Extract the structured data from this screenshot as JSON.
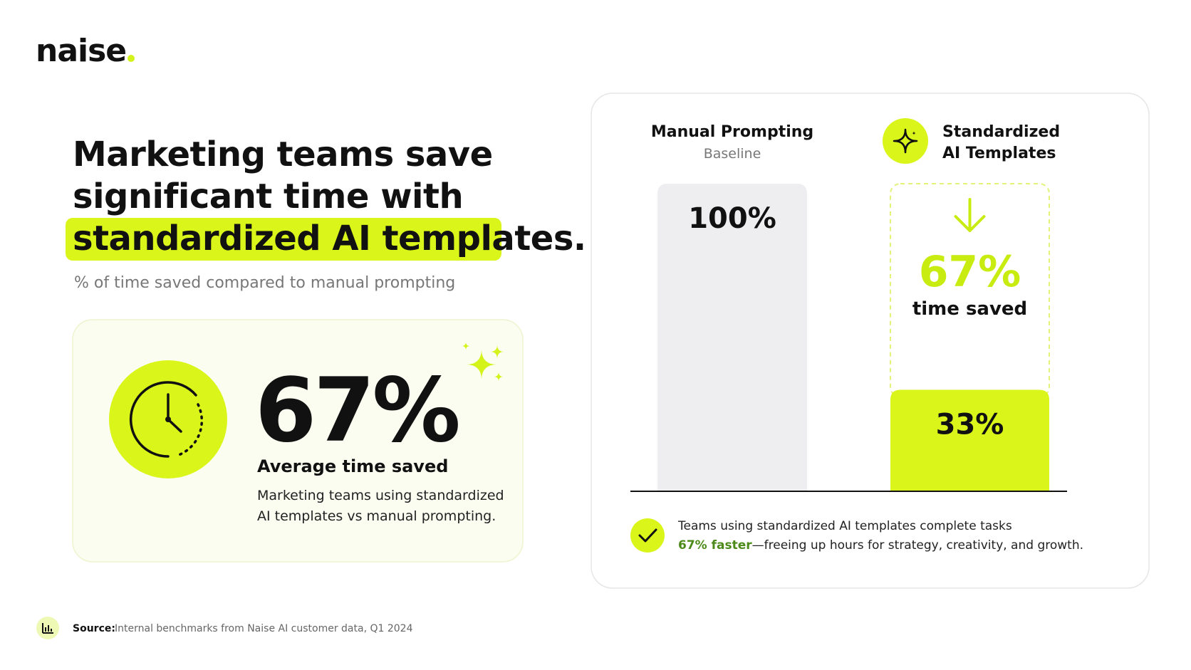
{
  "logo": "naise",
  "headline": {
    "lines": [
      "Marketing teams save",
      "significant time with"
    ],
    "highlight": "standardized AI templates."
  },
  "subtitle": "% of time saved compared to manual prompting",
  "stat_card": {
    "value": "67%",
    "label": "Average time saved",
    "description": [
      "Marketing teams using standardized",
      "AI templates vs manual prompting."
    ]
  },
  "comparison": {
    "bars": [
      {
        "title": [
          "Manual Prompting"
        ],
        "subtitle": "Baseline",
        "value": 100,
        "value_label": "100%"
      },
      {
        "title": [
          "Standardized",
          "AI Templates"
        ],
        "value": 33,
        "value_label": "33%"
      }
    ],
    "saved": {
      "value_label": "67%",
      "label": "time saved"
    },
    "note": {
      "line1": "Teams using standardized AI templates complete tasks",
      "emphasis": "67% faster",
      "rest": "—freeing up hours for strategy, creativity, and growth."
    }
  },
  "source": {
    "label": "Source:",
    "text": "Internal benchmarks from Naise AI customer data, Q1 2024"
  }
}
